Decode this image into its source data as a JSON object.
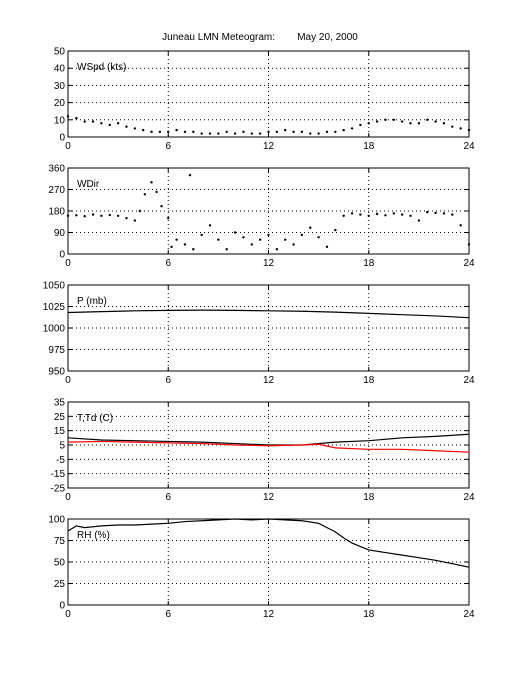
{
  "title": "Juneau LMN Meteogram:        May 20, 2000",
  "colors": {
    "temperature": "#000000",
    "dewpoint": "#ff0000",
    "frame": "#000000",
    "grid": "#000000"
  },
  "chart_data": [
    {
      "type": "scatter",
      "label": "WSpd (kts)",
      "xlim": [
        0,
        24
      ],
      "ylim": [
        0,
        50
      ],
      "xticks": [
        "0",
        "6",
        "12",
        "18",
        "24"
      ],
      "yticks": [
        "0",
        "10",
        "20",
        "30",
        "40",
        "50"
      ],
      "grid": true,
      "series": [
        {
          "x": [
            0,
            0.5,
            1,
            1.5,
            2,
            2.5,
            3,
            3.5,
            4,
            4.5,
            5,
            5.5,
            6,
            6.5,
            7,
            7.5,
            8,
            8.5,
            9,
            9.5,
            10,
            10.5,
            11,
            11.5,
            12,
            12.5,
            13,
            13.5,
            14,
            14.5,
            15,
            15.5,
            16,
            16.5,
            17,
            17.5,
            18,
            18.5,
            19,
            19.5,
            20,
            20.5,
            21,
            21.5,
            22,
            22.5,
            23,
            23.5,
            24
          ],
          "y": [
            12,
            11,
            9,
            9,
            8,
            7,
            8,
            6,
            5,
            4,
            3,
            3,
            3,
            4,
            3,
            3,
            2,
            2,
            2,
            3,
            2,
            3,
            2,
            2,
            3,
            3,
            4,
            3,
            3,
            2,
            2,
            3,
            3,
            4,
            5,
            7,
            8,
            9,
            10,
            10,
            9,
            8,
            8,
            10,
            9,
            8,
            6,
            5,
            4
          ]
        }
      ]
    },
    {
      "type": "scatter",
      "label": "WDir",
      "xlim": [
        0,
        24
      ],
      "ylim": [
        0,
        360
      ],
      "xticks": [
        "0",
        "6",
        "12",
        "18",
        "24"
      ],
      "yticks": [
        "0",
        "90",
        "180",
        "270",
        "360"
      ],
      "grid": true,
      "series": [
        {
          "x": [
            0,
            0.5,
            1,
            1.5,
            2,
            2.5,
            3,
            3.5,
            4,
            4.3,
            4.6,
            5,
            5.3,
            5.6,
            6,
            6.2,
            6.5,
            7,
            7.3,
            7.5,
            8,
            8.5,
            9,
            9.5,
            10,
            10.5,
            11,
            11.5,
            12,
            12.5,
            13,
            13.5,
            14,
            14.5,
            15,
            15.5,
            16,
            16.5,
            17,
            17.5,
            18,
            18.5,
            19,
            19.5,
            20,
            20.5,
            21,
            21.5,
            22,
            22.5,
            23,
            23.5,
            24
          ],
          "y": [
            160,
            162,
            158,
            165,
            160,
            163,
            160,
            150,
            140,
            180,
            250,
            300,
            260,
            200,
            150,
            30,
            60,
            40,
            330,
            20,
            80,
            120,
            60,
            20,
            90,
            70,
            40,
            60,
            80,
            20,
            60,
            40,
            80,
            110,
            70,
            30,
            100,
            160,
            170,
            165,
            160,
            168,
            162,
            170,
            165,
            160,
            140,
            175,
            172,
            170,
            165,
            120,
            40
          ]
        }
      ]
    },
    {
      "type": "line",
      "label": "P (mb)",
      "xlim": [
        0,
        24
      ],
      "ylim": [
        950,
        1050
      ],
      "xticks": [
        "0",
        "6",
        "12",
        "18",
        "24"
      ],
      "yticks": [
        "950",
        "975",
        "1000",
        "1025",
        "1050"
      ],
      "grid": true,
      "series": [
        {
          "x": [
            0,
            2,
            4,
            6,
            8,
            10,
            12,
            14,
            16,
            18,
            20,
            22,
            24
          ],
          "y": [
            1018,
            1019,
            1020,
            1020.5,
            1020.8,
            1020.5,
            1020,
            1019.5,
            1018.5,
            1017,
            1015.5,
            1014,
            1012
          ]
        }
      ]
    },
    {
      "type": "line",
      "label": "T,Td (C)",
      "xlim": [
        0,
        24
      ],
      "ylim": [
        -25,
        35
      ],
      "xticks": [
        "0",
        "6",
        "12",
        "18",
        "24"
      ],
      "yticks": [
        "-25",
        "-15",
        "-5",
        "5",
        "15",
        "25",
        "35"
      ],
      "grid": true,
      "series": [
        {
          "x": [
            0,
            2,
            4,
            6,
            8,
            10,
            12,
            14,
            16,
            18,
            20,
            22,
            24
          ],
          "y": [
            10,
            8.5,
            8,
            7.5,
            7,
            6,
            5,
            5,
            7,
            8,
            10,
            11,
            12.5
          ]
        },
        {
          "x": [
            0,
            2,
            4,
            6,
            8,
            10,
            12,
            14,
            15,
            16,
            18,
            20,
            22,
            24
          ],
          "y": [
            7,
            7.5,
            7,
            6.5,
            6,
            5,
            4.5,
            5,
            5.5,
            3,
            2,
            2,
            1,
            0
          ]
        }
      ]
    },
    {
      "type": "line",
      "label": "RH (%)",
      "xlim": [
        0,
        24
      ],
      "ylim": [
        0,
        100
      ],
      "xticks": [
        "0",
        "6",
        "12",
        "18",
        "24"
      ],
      "yticks": [
        "0",
        "25",
        "50",
        "75",
        "100"
      ],
      "grid": true,
      "series": [
        {
          "x": [
            0,
            0.5,
            1,
            2,
            3,
            4,
            5,
            6,
            7,
            8,
            9,
            10,
            11,
            12,
            13,
            14,
            15,
            15.5,
            16,
            16.5,
            17,
            17.5,
            18,
            19,
            20,
            21,
            22,
            23,
            24
          ],
          "y": [
            86,
            92,
            90,
            92,
            93,
            93,
            94,
            95,
            97,
            98,
            99,
            100,
            99,
            100,
            99,
            98,
            95,
            90,
            85,
            78,
            72,
            68,
            64,
            61,
            58,
            55,
            52,
            48,
            44
          ]
        }
      ]
    }
  ]
}
